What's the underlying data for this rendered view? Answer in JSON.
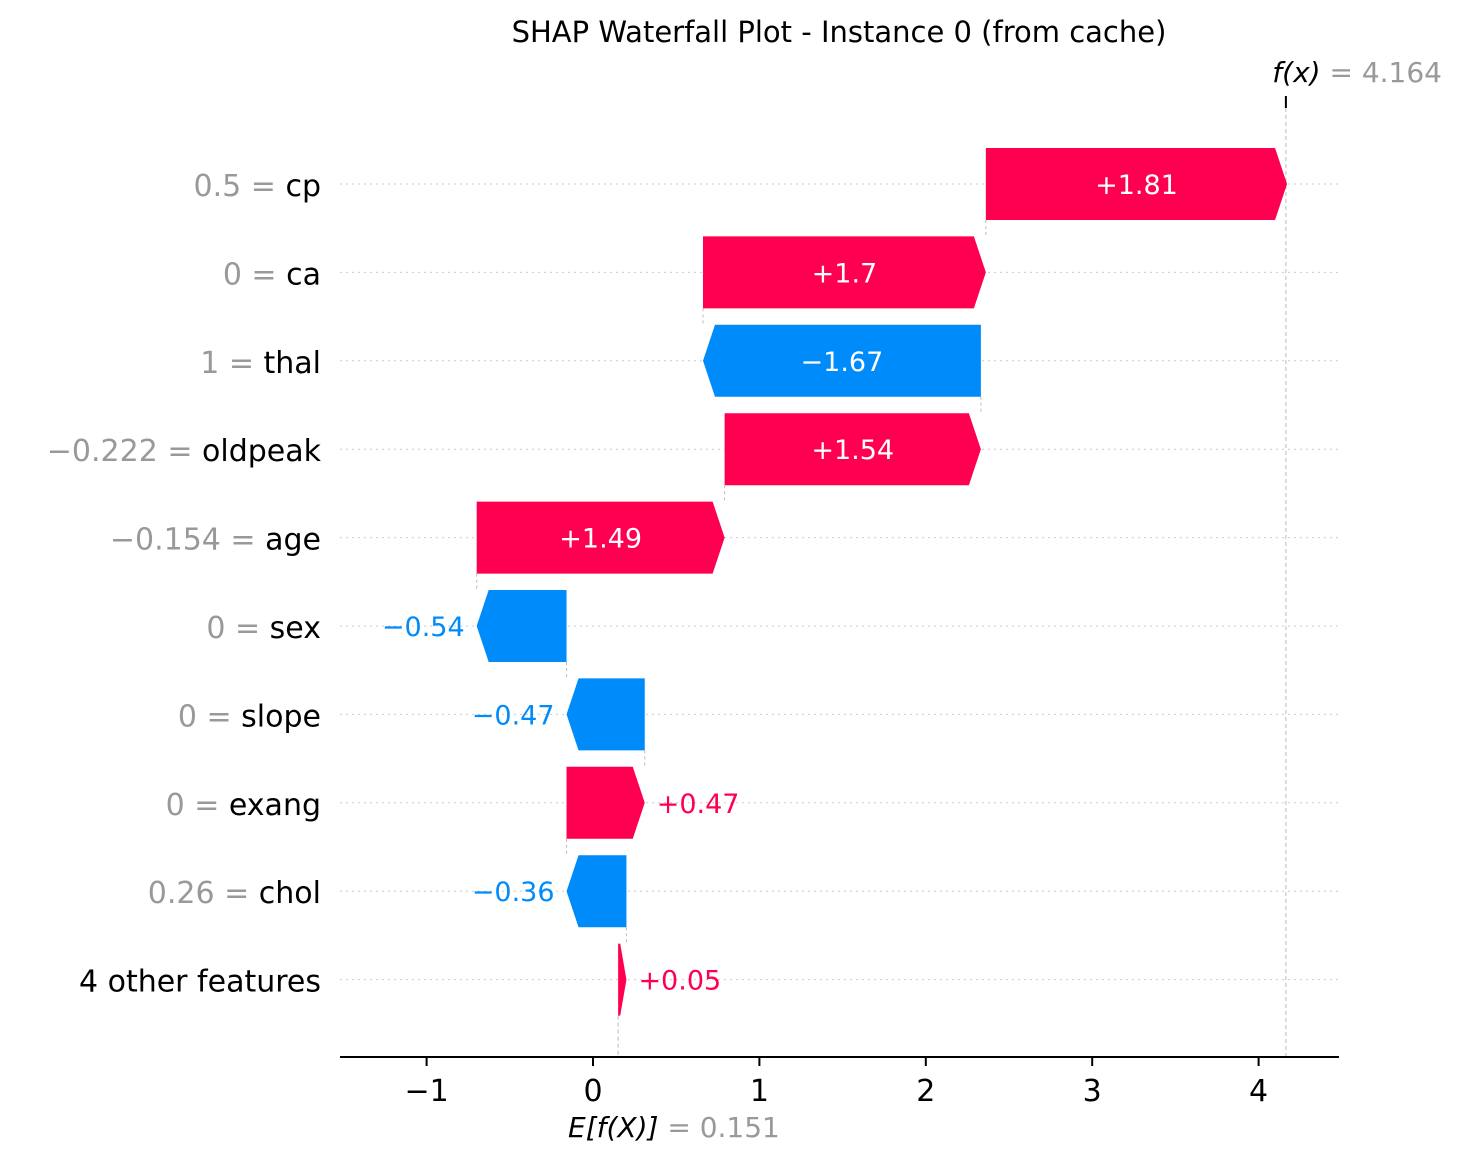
{
  "chart_data": {
    "type": "bar",
    "title": "SHAP Waterfall Plot - Instance 0 (from cache)",
    "base_value": {
      "label": "E[f(X)]",
      "value": 0.151,
      "text": "= 0.151"
    },
    "output_value": {
      "label": "f(x)",
      "value": 4.164,
      "text": "= 4.164"
    },
    "xlim": [
      -1.5,
      4.5
    ],
    "xticks": [
      -1,
      0,
      1,
      2,
      3,
      4
    ],
    "xtick_labels": [
      "−1",
      "0",
      "1",
      "2",
      "3",
      "4"
    ],
    "colors": {
      "positive": "#ff0051",
      "negative": "#008bfb",
      "connector": "#bbbbbb",
      "gridline": "#cccccc"
    },
    "features": [
      {
        "name": "cp",
        "value": "0.5",
        "shap": 1.81,
        "label": "+1.81"
      },
      {
        "name": "ca",
        "value": "0",
        "shap": 1.7,
        "label": "+1.7"
      },
      {
        "name": "thal",
        "value": "1",
        "shap": -1.67,
        "label": "−1.67"
      },
      {
        "name": "oldpeak",
        "value": "−0.222",
        "shap": 1.54,
        "label": "+1.54"
      },
      {
        "name": "age",
        "value": "−0.154",
        "shap": 1.49,
        "label": "+1.49"
      },
      {
        "name": "sex",
        "value": "0",
        "shap": -0.54,
        "label": "−0.54"
      },
      {
        "name": "slope",
        "value": "0",
        "shap": -0.47,
        "label": "−0.47"
      },
      {
        "name": "exang",
        "value": "0",
        "shap": 0.47,
        "label": "+0.47"
      },
      {
        "name": "chol",
        "value": "0.26",
        "shap": -0.36,
        "label": "−0.36"
      },
      {
        "name": "4 other features",
        "value": "",
        "shap": 0.05,
        "label": "+0.05"
      }
    ]
  }
}
